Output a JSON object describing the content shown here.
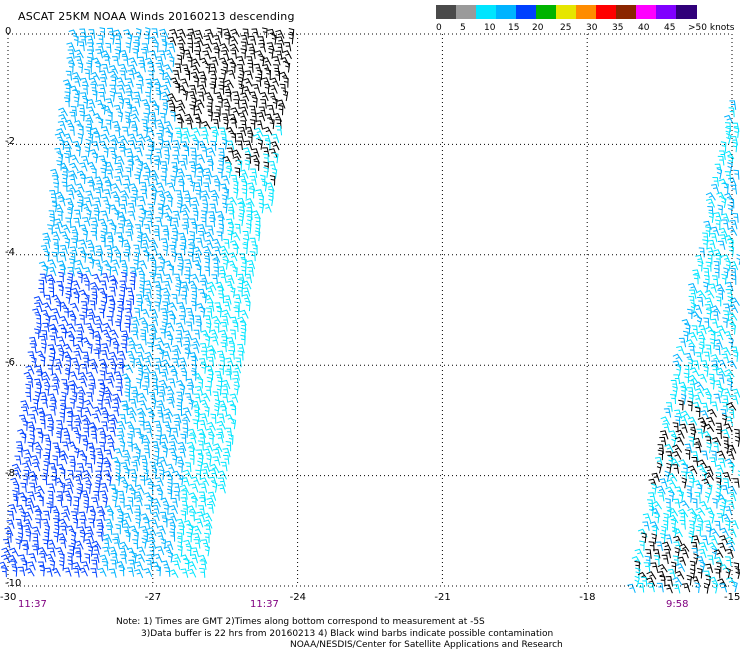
{
  "title": "ASCAT 25KM NOAA Winds 20160213 descending",
  "legend": {
    "labels": [
      "0",
      "5",
      "10",
      "15",
      "20",
      "25",
      "30",
      "35",
      "40",
      "45",
      ">50 knots"
    ],
    "colors": [
      "#4a4a4a",
      "#9a9a9a",
      "#00e5ff",
      "#00b3ff",
      "#0040ff",
      "#00b400",
      "#e6e600",
      "#ff8c00",
      "#ff0000",
      "#8b2500",
      "#ff00ff",
      "#8000ff",
      "#30007a"
    ]
  },
  "map": {
    "lon_ticks": [
      "-30",
      "-27",
      "-24",
      "-21",
      "-18",
      "-15"
    ],
    "lat_ticks": [
      "0",
      "-2",
      "-4",
      "-6",
      "-8",
      "-10"
    ],
    "lon_range": [
      -30,
      -15
    ],
    "lat_range": [
      0,
      -10
    ],
    "grid": "dotted"
  },
  "pass_times": [
    "11:37",
    "11:37",
    "9:58"
  ],
  "notes": [
    "Note: 1) Times are GMT 2)Times along bottom correspond to measurement at -5S",
    "3)Data buffer is 22 hrs from 20160213 4) Black wind barbs indicate possible contamination",
    "NOAA/NESDIS/Center for Satellite Applications and Research"
  ]
}
